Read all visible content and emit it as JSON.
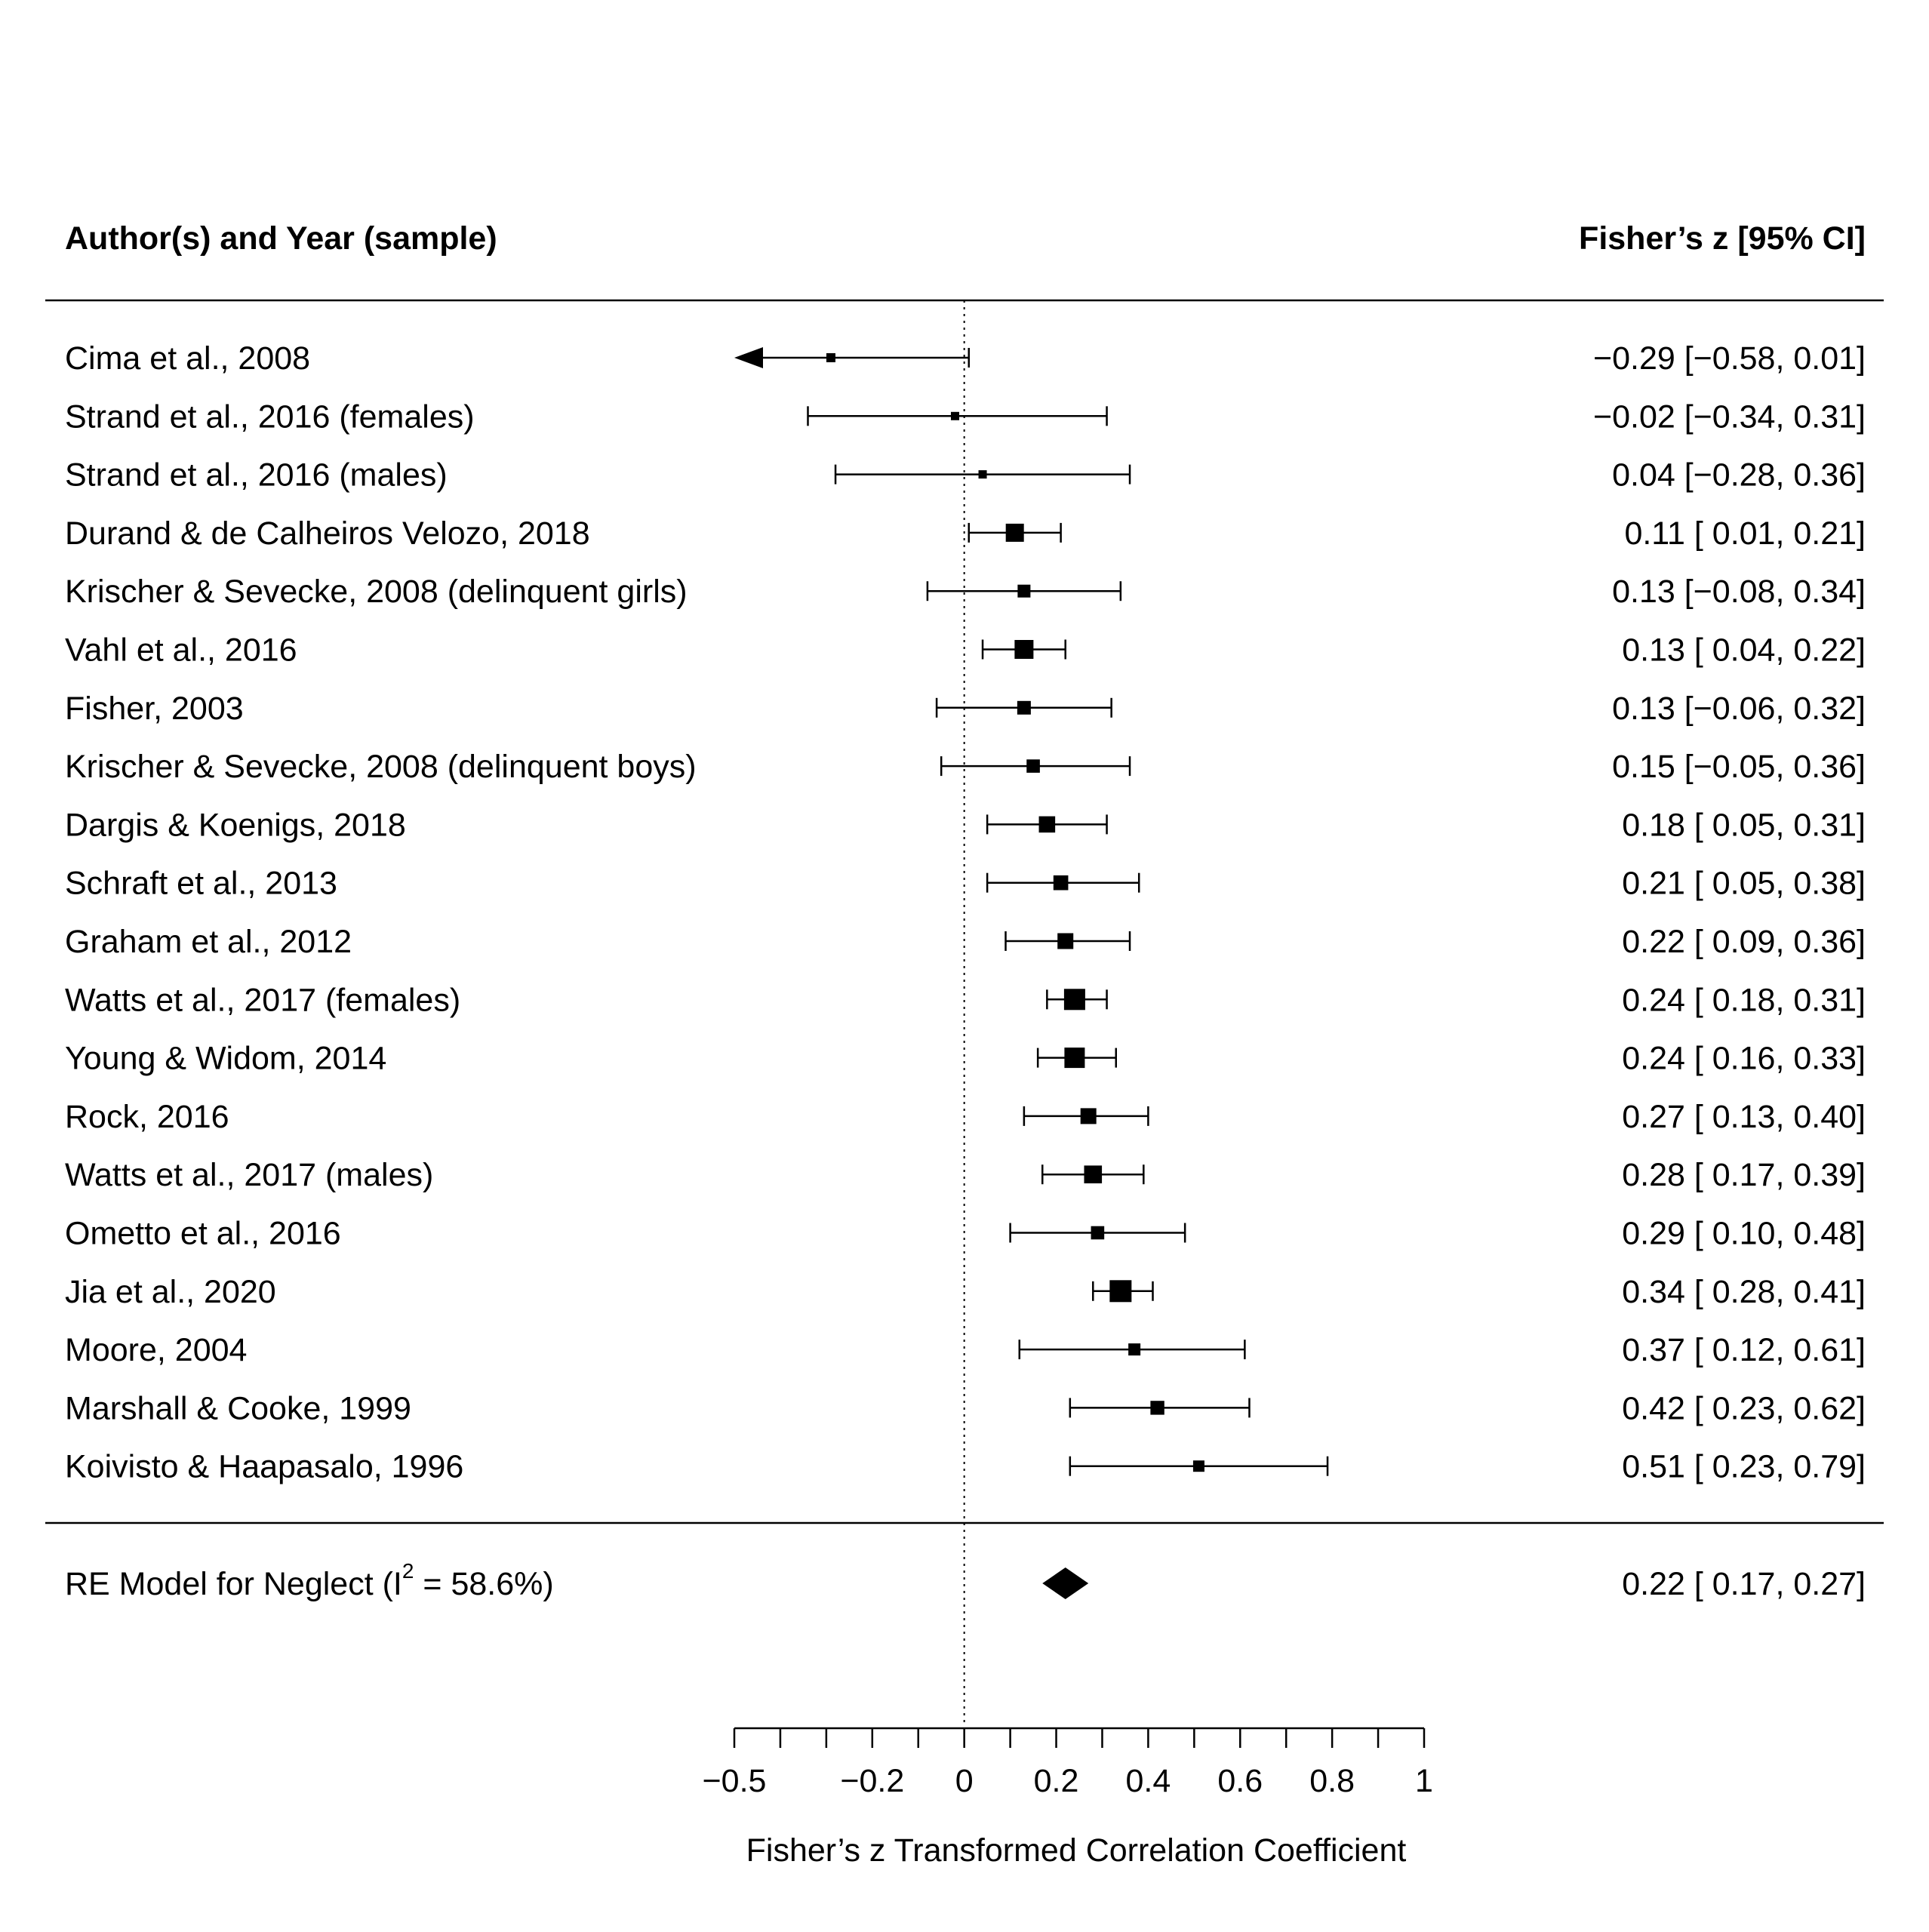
{
  "chart_data": {
    "type": "forest",
    "header": {
      "left": "Author(s) and Year (sample)",
      "right": "Fisher’s z [95% CI]"
    },
    "xlabel": "Fisher’s z Transformed Correlation Coefficient",
    "xlim": [
      -0.5,
      1
    ],
    "xticks": [
      -0.5,
      -0.4,
      -0.3,
      -0.2,
      -0.1,
      0,
      0.1,
      0.2,
      0.3,
      0.4,
      0.5,
      0.6,
      0.7,
      0.8,
      0.9,
      1
    ],
    "xtick_labels": [
      {
        "value": -0.5,
        "label": "−0.5"
      },
      {
        "value": -0.2,
        "label": "−0.2"
      },
      {
        "value": 0,
        "label": "0"
      },
      {
        "value": 0.2,
        "label": "0.2"
      },
      {
        "value": 0.4,
        "label": "0.4"
      },
      {
        "value": 0.6,
        "label": "0.6"
      },
      {
        "value": 0.8,
        "label": "0.8"
      },
      {
        "value": 1,
        "label": "1"
      }
    ],
    "reference_line": 0,
    "studies": [
      {
        "name": "Cima et al., 2008",
        "estimate": -0.29,
        "lower": -0.58,
        "upper": 0.01,
        "weight": 0.2,
        "text": "−0.29 [−0.58, 0.01]"
      },
      {
        "name": "Strand et al., 2016 (females)",
        "estimate": -0.02,
        "lower": -0.34,
        "upper": 0.31,
        "weight": 0.15,
        "text": "−0.02 [−0.34, 0.31]"
      },
      {
        "name": "Strand et al., 2016 (males)",
        "estimate": 0.04,
        "lower": -0.28,
        "upper": 0.36,
        "weight": 0.15,
        "text": "0.04 [−0.28, 0.36]"
      },
      {
        "name": "Durand & de Calheiros Velozo, 2018",
        "estimate": 0.11,
        "lower": 0.01,
        "upper": 0.21,
        "weight": 0.8,
        "text": "0.11 [ 0.01, 0.21]"
      },
      {
        "name": "Krischer & Sevecke, 2008 (delinquent girls)",
        "estimate": 0.13,
        "lower": -0.08,
        "upper": 0.34,
        "weight": 0.45,
        "text": "0.13 [−0.08, 0.34]"
      },
      {
        "name": "Vahl et al., 2016",
        "estimate": 0.13,
        "lower": 0.04,
        "upper": 0.22,
        "weight": 0.85,
        "text": "0.13 [ 0.04, 0.22]"
      },
      {
        "name": "Fisher, 2003",
        "estimate": 0.13,
        "lower": -0.06,
        "upper": 0.32,
        "weight": 0.5,
        "text": "0.13 [−0.06, 0.32]"
      },
      {
        "name": "Krischer & Sevecke, 2008 (delinquent boys)",
        "estimate": 0.15,
        "lower": -0.05,
        "upper": 0.36,
        "weight": 0.48,
        "text": "0.15 [−0.05, 0.36]"
      },
      {
        "name": "Dargis & Koenigs, 2018",
        "estimate": 0.18,
        "lower": 0.05,
        "upper": 0.31,
        "weight": 0.68,
        "text": "0.18 [ 0.05, 0.31]"
      },
      {
        "name": "Schraft et al., 2013",
        "estimate": 0.21,
        "lower": 0.05,
        "upper": 0.38,
        "weight": 0.58,
        "text": "0.21 [ 0.05, 0.38]"
      },
      {
        "name": "Graham et al., 2012",
        "estimate": 0.22,
        "lower": 0.09,
        "upper": 0.36,
        "weight": 0.65,
        "text": "0.22 [ 0.09, 0.36]"
      },
      {
        "name": "Watts et al., 2017 (females)",
        "estimate": 0.24,
        "lower": 0.18,
        "upper": 0.31,
        "weight": 1.0,
        "text": "0.24 [ 0.18, 0.31]"
      },
      {
        "name": "Young & Widom, 2014",
        "estimate": 0.24,
        "lower": 0.16,
        "upper": 0.33,
        "weight": 0.95,
        "text": "0.24 [ 0.16, 0.33]"
      },
      {
        "name": "Rock, 2016",
        "estimate": 0.27,
        "lower": 0.13,
        "upper": 0.4,
        "weight": 0.65,
        "text": "0.27 [ 0.13, 0.40]"
      },
      {
        "name": "Watts et al., 2017 (males)",
        "estimate": 0.28,
        "lower": 0.17,
        "upper": 0.39,
        "weight": 0.78,
        "text": "0.28 [ 0.17, 0.39]"
      },
      {
        "name": "Ometto et al., 2016",
        "estimate": 0.29,
        "lower": 0.1,
        "upper": 0.48,
        "weight": 0.48,
        "text": "0.29 [ 0.10, 0.48]"
      },
      {
        "name": "Jia et al., 2020",
        "estimate": 0.34,
        "lower": 0.28,
        "upper": 0.41,
        "weight": 1.05,
        "text": "0.34 [ 0.28, 0.41]"
      },
      {
        "name": "Moore, 2004",
        "estimate": 0.37,
        "lower": 0.12,
        "upper": 0.61,
        "weight": 0.4,
        "text": "0.37 [ 0.12, 0.61]"
      },
      {
        "name": "Marshall & Cooke, 1999",
        "estimate": 0.42,
        "lower": 0.23,
        "upper": 0.62,
        "weight": 0.52,
        "text": "0.42 [ 0.23, 0.62]"
      },
      {
        "name": "Koivisto & Haapasalo, 1996",
        "estimate": 0.51,
        "lower": 0.23,
        "upper": 0.79,
        "weight": 0.35,
        "text": "0.51 [ 0.23, 0.79]"
      }
    ],
    "summary": {
      "label_prefix": "RE Model for Neglect (I",
      "label_sup": "2",
      "label_suffix": " = 58.6%)",
      "estimate": 0.22,
      "lower": 0.17,
      "upper": 0.27,
      "text": "0.22 [ 0.17, 0.27]"
    },
    "color": "#000000"
  }
}
